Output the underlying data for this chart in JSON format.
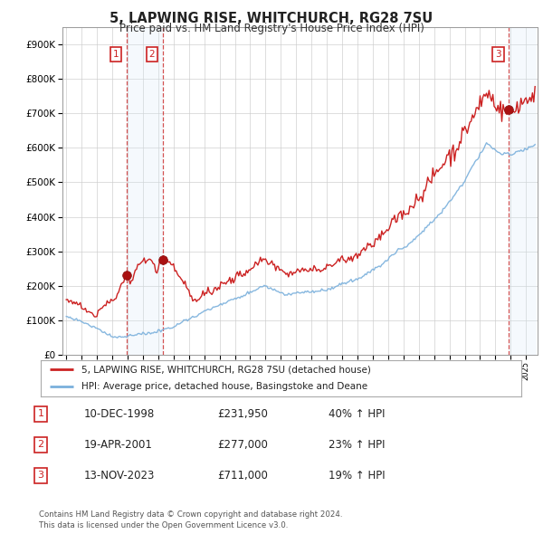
{
  "title": "5, LAPWING RISE, WHITCHURCH, RG28 7SU",
  "subtitle": "Price paid vs. HM Land Registry's House Price Index (HPI)",
  "ylim": [
    0,
    950000
  ],
  "yticks": [
    0,
    100000,
    200000,
    300000,
    400000,
    500000,
    600000,
    700000,
    800000,
    900000
  ],
  "ytick_labels": [
    "£0",
    "£100K",
    "£200K",
    "£300K",
    "£400K",
    "£500K",
    "£600K",
    "£700K",
    "£800K",
    "£900K"
  ],
  "hpi_color": "#7ab0dc",
  "price_color": "#cc2222",
  "sale_marker_color": "#aa1111",
  "vline_color": "#cc3333",
  "shade_color": "#d8eaf8",
  "background_color": "#ffffff",
  "grid_color": "#cccccc",
  "sales": [
    {
      "date_num": 1998.92,
      "price": 231950,
      "label": "1"
    },
    {
      "date_num": 2001.29,
      "price": 277000,
      "label": "2"
    },
    {
      "date_num": 2023.87,
      "price": 711000,
      "label": "3"
    }
  ],
  "legend_entries": [
    "5, LAPWING RISE, WHITCHURCH, RG28 7SU (detached house)",
    "HPI: Average price, detached house, Basingstoke and Deane"
  ],
  "table_rows": [
    {
      "num": "1",
      "date": "10-DEC-1998",
      "price": "£231,950",
      "change": "40% ↑ HPI"
    },
    {
      "num": "2",
      "date": "19-APR-2001",
      "price": "£277,000",
      "change": "23% ↑ HPI"
    },
    {
      "num": "3",
      "date": "13-NOV-2023",
      "price": "£711,000",
      "change": "19% ↑ HPI"
    }
  ],
  "footnote": "Contains HM Land Registry data © Crown copyright and database right 2024.\nThis data is licensed under the Open Government Licence v3.0."
}
